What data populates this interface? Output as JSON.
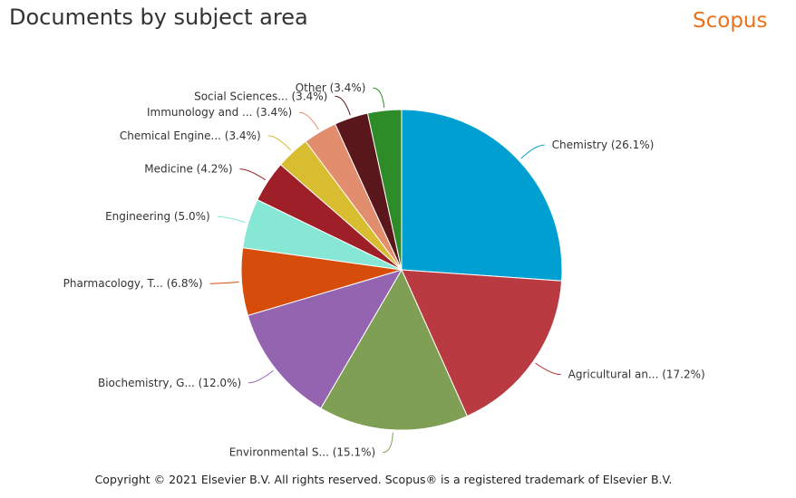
{
  "header": {
    "title": "Documents by subject area",
    "brand": "Scopus"
  },
  "footer": {
    "copyright": "Copyright © 2021 Elsevier B.V. All rights reserved. Scopus® is a registered trademark of Elsevier B.V."
  },
  "chart_data": {
    "type": "pie",
    "title": "Documents by subject area",
    "slices": [
      {
        "label": "Chemistry (26.1%)",
        "value": 26.1,
        "color": "#009fd1"
      },
      {
        "label": "Agricultural an... (17.2%)",
        "value": 17.2,
        "color": "#b93b41"
      },
      {
        "label": "Environmental S... (15.1%)",
        "value": 15.1,
        "color": "#7f9f54"
      },
      {
        "label": "Biochemistry, G... (12.0%)",
        "value": 12.0,
        "color": "#9464b1"
      },
      {
        "label": "Pharmacology, T... (6.8%)",
        "value": 6.8,
        "color": "#d54c0b"
      },
      {
        "label": "Engineering (5.0%)",
        "value": 5.0,
        "color": "#86e8d4"
      },
      {
        "label": "Medicine (4.2%)",
        "value": 4.2,
        "color": "#9e1f28"
      },
      {
        "label": "Chemical Engine... (3.4%)",
        "value": 3.4,
        "color": "#d7bd2f"
      },
      {
        "label": "Immunology and ... (3.4%)",
        "value": 3.4,
        "color": "#e38d6f"
      },
      {
        "label": "Social Sciences... (3.4%)",
        "value": 3.4,
        "color": "#5a171b"
      },
      {
        "label": "Other (3.4%)",
        "value": 3.4,
        "color": "#2d8c27"
      }
    ],
    "start_angle_deg": 0,
    "direction": "clockwise"
  }
}
